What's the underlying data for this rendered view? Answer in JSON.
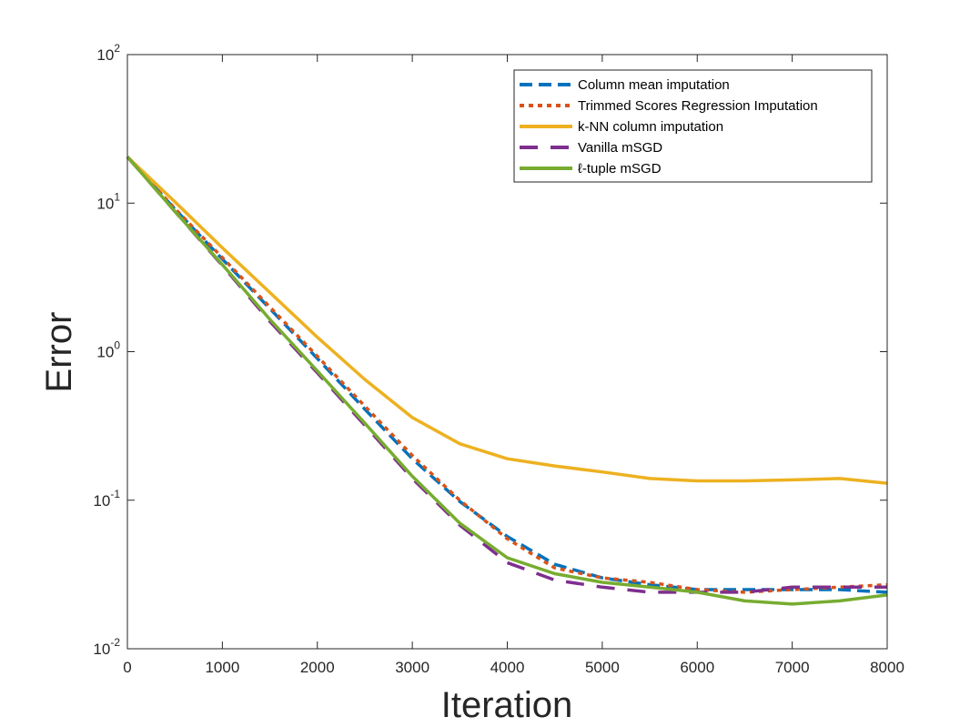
{
  "chart_data": {
    "type": "line",
    "title": "",
    "xlabel": "Iteration",
    "ylabel": "Error",
    "xlim": [
      0,
      8000
    ],
    "ylim": [
      0.01,
      100
    ],
    "yscale": "log",
    "grid": false,
    "legend_position": "top-right",
    "x_ticks": [
      {
        "value": 0,
        "label": "0"
      },
      {
        "value": 1000,
        "label": "1000"
      },
      {
        "value": 2000,
        "label": "2000"
      },
      {
        "value": 3000,
        "label": "3000"
      },
      {
        "value": 4000,
        "label": "4000"
      },
      {
        "value": 5000,
        "label": "5000"
      },
      {
        "value": 6000,
        "label": "6000"
      },
      {
        "value": 7000,
        "label": "7000"
      },
      {
        "value": 8000,
        "label": "8000"
      }
    ],
    "y_ticks": [
      {
        "value": 0.01,
        "base": "10",
        "exp": "-2"
      },
      {
        "value": 0.1,
        "base": "10",
        "exp": "-1"
      },
      {
        "value": 1,
        "base": "10",
        "exp": "0"
      },
      {
        "value": 10,
        "base": "10",
        "exp": "1"
      },
      {
        "value": 100,
        "base": "10",
        "exp": "2"
      }
    ],
    "x": [
      0,
      500,
      1000,
      1500,
      2000,
      2500,
      3000,
      3500,
      4000,
      4500,
      5000,
      5500,
      6000,
      6500,
      7000,
      7500,
      8000
    ],
    "series": [
      {
        "name": "Column mean imputation",
        "color": "#0072BD",
        "dash": "dashed",
        "values": [
          20.5,
          9.1,
          4.2,
          1.95,
          0.9,
          0.41,
          0.19,
          0.098,
          0.057,
          0.037,
          0.03,
          0.027,
          0.025,
          0.025,
          0.025,
          0.025,
          0.024
        ]
      },
      {
        "name": "Trimmed Scores Regression Imputation",
        "color": "#D95319",
        "dash": "dotted",
        "values": [
          20.5,
          9.2,
          4.3,
          2.0,
          0.93,
          0.43,
          0.2,
          0.1,
          0.055,
          0.035,
          0.03,
          0.028,
          0.025,
          0.024,
          0.025,
          0.026,
          0.027
        ]
      },
      {
        "name": "k-NN column imputation",
        "color": "#EDB120",
        "dash": "solid",
        "values": [
          20.5,
          10.2,
          5.0,
          2.5,
          1.25,
          0.65,
          0.36,
          0.24,
          0.19,
          0.17,
          0.155,
          0.14,
          0.135,
          0.135,
          0.137,
          0.14,
          0.13
        ]
      },
      {
        "name": "Vanilla mSGD",
        "color": "#7E2F8E",
        "dash": "longdash",
        "values": [
          20.5,
          8.8,
          3.8,
          1.6,
          0.72,
          0.32,
          0.14,
          0.068,
          0.038,
          0.029,
          0.026,
          0.024,
          0.024,
          0.024,
          0.026,
          0.026,
          0.026
        ]
      },
      {
        "name": "ℓ-tuple mSGD",
        "color": "#77AC30",
        "dash": "solid",
        "values": [
          20.5,
          8.8,
          3.85,
          1.65,
          0.74,
          0.33,
          0.145,
          0.07,
          0.041,
          0.032,
          0.028,
          0.026,
          0.024,
          0.021,
          0.02,
          0.021,
          0.023
        ]
      }
    ]
  }
}
